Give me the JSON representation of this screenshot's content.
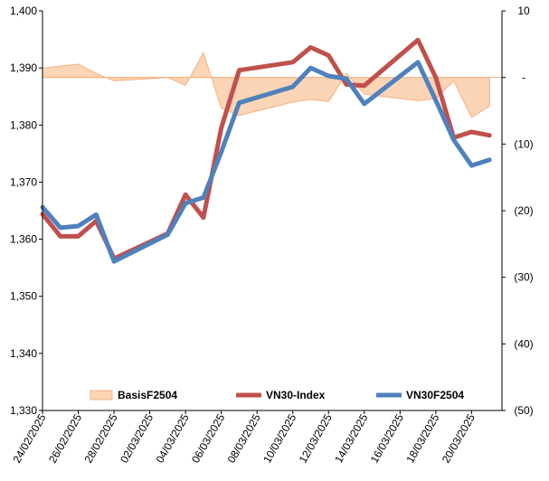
{
  "chart_data": {
    "type": "line",
    "title": "",
    "x": [
      "24/02/2025",
      "25/02/2025",
      "26/02/2025",
      "27/02/2025",
      "28/02/2025",
      "03/03/2025",
      "04/03/2025",
      "05/03/2025",
      "06/03/2025",
      "07/03/2025",
      "10/03/2025",
      "11/03/2025",
      "12/03/2025",
      "13/03/2025",
      "14/03/2025",
      "17/03/2025",
      "18/03/2025",
      "19/03/2025",
      "20/03/2025",
      "21/03/2025"
    ],
    "x_tick_labels": [
      "24/02/2025",
      "26/02/2025",
      "28/02/2025",
      "02/03/2025",
      "04/03/2025",
      "06/03/2025",
      "08/03/2025",
      "10/03/2025",
      "12/03/2025",
      "14/03/2025",
      "16/03/2025",
      "18/03/2025",
      "20/03/2025"
    ],
    "y_left": {
      "min": 1330,
      "max": 1400,
      "ticks": [
        "1,330",
        "1,340",
        "1,350",
        "1,360",
        "1,370",
        "1,380",
        "1,390",
        "1,400"
      ]
    },
    "y_right": {
      "min": -50,
      "max": 10,
      "ticks": [
        "(50)",
        "(40)",
        "(30)",
        "(20)",
        "(10)",
        "-",
        "10"
      ]
    },
    "grid": false,
    "legend_position": "bottom-inside",
    "series": [
      {
        "name": "BasisF2504",
        "axis": "right",
        "kind": "area",
        "color": "#fbd5b5",
        "stroke": "#f4b183",
        "x": [
          "24/02/2025",
          "26/02/2025",
          "27/02/2025",
          "28/02/2025",
          "03/03/2025",
          "04/03/2025",
          "05/03/2025",
          "06/03/2025",
          "07/03/2025",
          "10/03/2025",
          "11/03/2025",
          "12/03/2025",
          "13/03/2025",
          "14/03/2025",
          "17/03/2025",
          "18/03/2025",
          "19/03/2025",
          "20/03/2025",
          "21/03/2025"
        ],
        "values": [
          1.4,
          2.0,
          0.6,
          -0.5,
          0.0,
          -1.2,
          3.7,
          -4.6,
          -5.7,
          -3.7,
          -3.3,
          -3.6,
          0.6,
          -2.5,
          -3.5,
          -3.2,
          -0.5,
          -6.0,
          -4.3
        ]
      },
      {
        "name": "VN30-Index",
        "axis": "left",
        "kind": "line",
        "color": "#c0504d",
        "x": [
          "24/02/2025",
          "25/02/2025",
          "26/02/2025",
          "27/02/2025",
          "28/02/2025",
          "03/03/2025",
          "04/03/2025",
          "05/03/2025",
          "06/03/2025",
          "07/03/2025",
          "10/03/2025",
          "11/03/2025",
          "12/03/2025",
          "13/03/2025",
          "14/03/2025",
          "17/03/2025",
          "18/03/2025",
          "19/03/2025",
          "20/03/2025",
          "21/03/2025"
        ],
        "values": [
          1364.4,
          1360.5,
          1360.5,
          1363.2,
          1356.6,
          1361.0,
          1367.8,
          1363.8,
          1379.5,
          1389.6,
          1391.0,
          1393.6,
          1392.2,
          1387.1,
          1386.9,
          1394.9,
          1388.3,
          1377.8,
          1378.8,
          1378.2
        ]
      },
      {
        "name": "VN30F2504",
        "axis": "left",
        "kind": "line",
        "color": "#4f81bd",
        "x": [
          "24/02/2025",
          "25/02/2025",
          "26/02/2025",
          "27/02/2025",
          "28/02/2025",
          "03/03/2025",
          "04/03/2025",
          "05/03/2025",
          "06/03/2025",
          "07/03/2025",
          "10/03/2025",
          "11/03/2025",
          "12/03/2025",
          "13/03/2025",
          "14/03/2025",
          "17/03/2025",
          "18/03/2025",
          "19/03/2025",
          "20/03/2025",
          "21/03/2025"
        ],
        "values": [
          1365.6,
          1362.0,
          1362.3,
          1364.3,
          1356.1,
          1360.8,
          1366.3,
          1367.3,
          1375.3,
          1383.9,
          1386.7,
          1390.0,
          1388.6,
          1388.1,
          1383.7,
          1391.0,
          1384.3,
          1377.4,
          1372.9,
          1373.9
        ]
      }
    ]
  }
}
